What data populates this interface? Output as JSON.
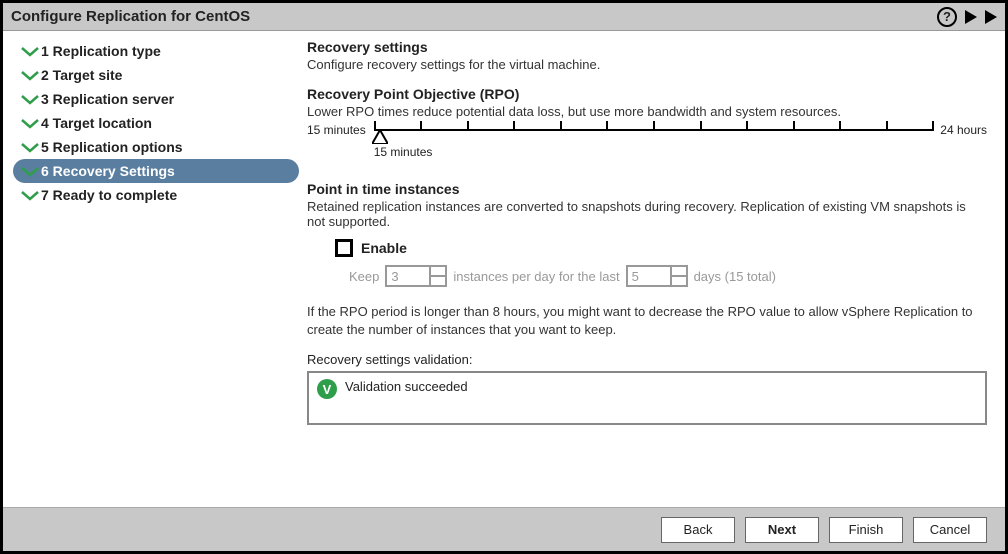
{
  "window": {
    "title": "Configure Replication for CentOS"
  },
  "wizard": {
    "active_index": 5,
    "steps": [
      {
        "label": "1 Replication type",
        "completed": true,
        "active": false
      },
      {
        "label": "2 Target site",
        "completed": true,
        "active": false
      },
      {
        "label": "3 Replication server",
        "completed": true,
        "active": false
      },
      {
        "label": "4 Target location",
        "completed": true,
        "active": false
      },
      {
        "label": "5 Replication options",
        "completed": true,
        "active": false
      },
      {
        "label": "6 Recovery Settings",
        "completed": true,
        "active": true
      },
      {
        "label": "7 Ready to complete",
        "completed": false,
        "active": false
      }
    ]
  },
  "content": {
    "heading": "Recovery settings",
    "subheading": "Configure recovery settings for the virtual machine.",
    "rpo": {
      "title": "Recovery Point Objective (RPO)",
      "desc": "Lower RPO times reduce potential data loss, but use more bandwidth and system resources.",
      "min_label": "15 minutes",
      "max_label": "24 hours",
      "value_label": "15 minutes",
      "tick_count": 13,
      "slider_color": "#000000"
    },
    "pit": {
      "title": "Point in time instances",
      "desc": "Retained replication instances are converted to snapshots during recovery. Replication of existing VM snapshots is not supported.",
      "enable_label": "Enable",
      "enabled": false,
      "keep_label": "Keep",
      "instances_per_day": "3",
      "mid_label": "instances per day for the last",
      "days": "5",
      "days_suffix": "days (15 total)",
      "disabled_text_color": "#999999"
    },
    "rpo_note": "If the RPO period is longer than 8 hours, you might want to decrease the RPO value to allow vSphere Replication to create the number of instances that you want to keep.",
    "validation": {
      "label": "Recovery settings validation:",
      "status_text": "Validation succeeded",
      "icon_color": "#2e9e4a"
    }
  },
  "footer": {
    "back": "Back",
    "next": "Next",
    "finish": "Finish",
    "cancel": "Cancel"
  },
  "colors": {
    "titlebar_bg": "#c8c8c8",
    "active_step_bg": "#5a7ea0",
    "active_step_fg": "#ffffff",
    "chevron_color": "#2e9e4a",
    "border": "#000000"
  }
}
